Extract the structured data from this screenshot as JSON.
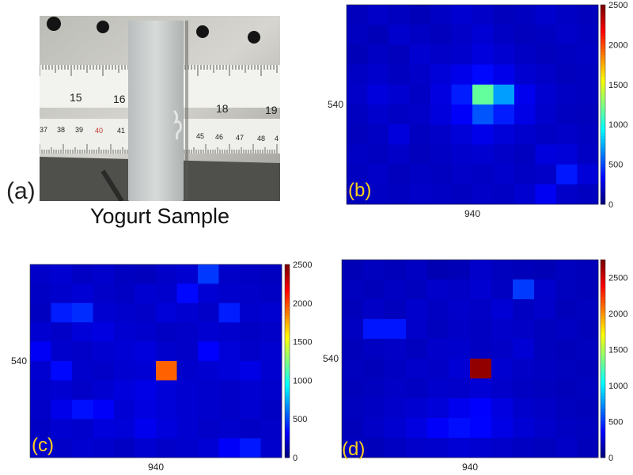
{
  "labels": {
    "a": "(a)",
    "b": "(b)",
    "c": "(c)",
    "d": "(d)"
  },
  "caption": "Yogurt Sample",
  "photo": {
    "ruler_top_numbers": [
      "15",
      "16",
      "18",
      "19"
    ],
    "ruler_bottom_numbers": [
      "37",
      "38",
      "39",
      "40",
      "41",
      "45",
      "46",
      "47",
      "48",
      "4"
    ]
  },
  "chart_data": [
    {
      "type": "heatmap",
      "panel": "(b)",
      "xtick_label": "940",
      "ytick_label": "540",
      "colorbar_ticks": [
        "0",
        "500",
        "1000",
        "1500",
        "2000",
        "2500"
      ],
      "colorbar_range": [
        0,
        2500
      ],
      "rows": 10,
      "cols": 12,
      "values": [
        [
          150,
          180,
          160,
          140,
          170,
          200,
          180,
          150,
          160,
          190,
          170,
          150
        ],
        [
          160,
          140,
          190,
          170,
          150,
          180,
          210,
          170,
          150,
          160,
          180,
          160
        ],
        [
          140,
          170,
          150,
          200,
          180,
          190,
          230,
          200,
          170,
          150,
          160,
          170
        ],
        [
          170,
          190,
          160,
          180,
          220,
          260,
          330,
          260,
          200,
          180,
          150,
          160
        ],
        [
          180,
          230,
          200,
          170,
          240,
          380,
          1180,
          700,
          270,
          200,
          170,
          160
        ],
        [
          160,
          190,
          170,
          180,
          230,
          300,
          520,
          380,
          250,
          190,
          160,
          150
        ],
        [
          150,
          170,
          230,
          160,
          180,
          220,
          260,
          220,
          190,
          170,
          180,
          160
        ],
        [
          170,
          160,
          180,
          150,
          170,
          190,
          200,
          180,
          160,
          230,
          220,
          170
        ],
        [
          160,
          180,
          150,
          170,
          160,
          180,
          170,
          190,
          170,
          180,
          370,
          220
        ],
        [
          150,
          170,
          160,
          180,
          170,
          160,
          180,
          170,
          200,
          280,
          180,
          160
        ]
      ]
    },
    {
      "type": "heatmap",
      "panel": "(c)",
      "xtick_label": "940",
      "ytick_label": "540",
      "colorbar_ticks": [
        "0",
        "500",
        "1000",
        "1500",
        "2000",
        "2500"
      ],
      "colorbar_range": [
        0,
        2500
      ],
      "rows": 10,
      "cols": 12,
      "values": [
        [
          180,
          200,
          170,
          190,
          160,
          150,
          180,
          200,
          450,
          180,
          170,
          160
        ],
        [
          170,
          190,
          210,
          180,
          170,
          200,
          190,
          330,
          210,
          190,
          180,
          170
        ],
        [
          160,
          380,
          420,
          200,
          190,
          180,
          220,
          200,
          180,
          380,
          190,
          200
        ],
        [
          200,
          180,
          220,
          240,
          200,
          190,
          170,
          180,
          200,
          190,
          170,
          180
        ],
        [
          290,
          190,
          180,
          200,
          210,
          230,
          190,
          180,
          310,
          220,
          180,
          200
        ],
        [
          200,
          330,
          190,
          180,
          200,
          210,
          1950,
          190,
          200,
          220,
          250,
          200
        ],
        [
          190,
          200,
          180,
          200,
          230,
          250,
          220,
          200,
          190,
          180,
          200,
          190
        ],
        [
          180,
          260,
          350,
          300,
          210,
          240,
          220,
          200,
          190,
          180,
          200,
          170
        ],
        [
          170,
          200,
          190,
          230,
          220,
          270,
          230,
          200,
          180,
          190,
          170,
          180
        ],
        [
          190,
          180,
          200,
          190,
          170,
          200,
          180,
          190,
          210,
          300,
          370,
          190
        ]
      ]
    },
    {
      "type": "heatmap",
      "panel": "(d)",
      "xtick_label": "940",
      "ytick_label": "540",
      "colorbar_ticks": [
        "0",
        "500",
        "1000",
        "1500",
        "2000",
        "2500"
      ],
      "colorbar_range": [
        0,
        2750
      ],
      "rows": 10,
      "cols": 12,
      "values": [
        [
          150,
          170,
          160,
          180,
          140,
          150,
          200,
          170,
          160,
          150,
          170,
          160
        ],
        [
          170,
          160,
          180,
          170,
          200,
          190,
          220,
          180,
          500,
          210,
          170,
          160
        ],
        [
          160,
          190,
          170,
          210,
          180,
          200,
          190,
          230,
          180,
          200,
          160,
          170
        ],
        [
          180,
          400,
          400,
          200,
          170,
          190,
          180,
          200,
          190,
          170,
          180,
          160
        ],
        [
          160,
          180,
          190,
          170,
          200,
          210,
          180,
          190,
          230,
          170,
          160,
          170
        ],
        [
          170,
          160,
          180,
          200,
          190,
          230,
          2700,
          220,
          190,
          180,
          170,
          160
        ],
        [
          160,
          170,
          190,
          180,
          210,
          200,
          230,
          200,
          180,
          170,
          160,
          170
        ],
        [
          170,
          180,
          200,
          220,
          240,
          300,
          340,
          260,
          210,
          190,
          170,
          160
        ],
        [
          160,
          190,
          220,
          260,
          330,
          380,
          350,
          280,
          230,
          200,
          180,
          170
        ],
        [
          170,
          160,
          180,
          200,
          210,
          230,
          220,
          200,
          180,
          170,
          190,
          160
        ]
      ]
    }
  ]
}
